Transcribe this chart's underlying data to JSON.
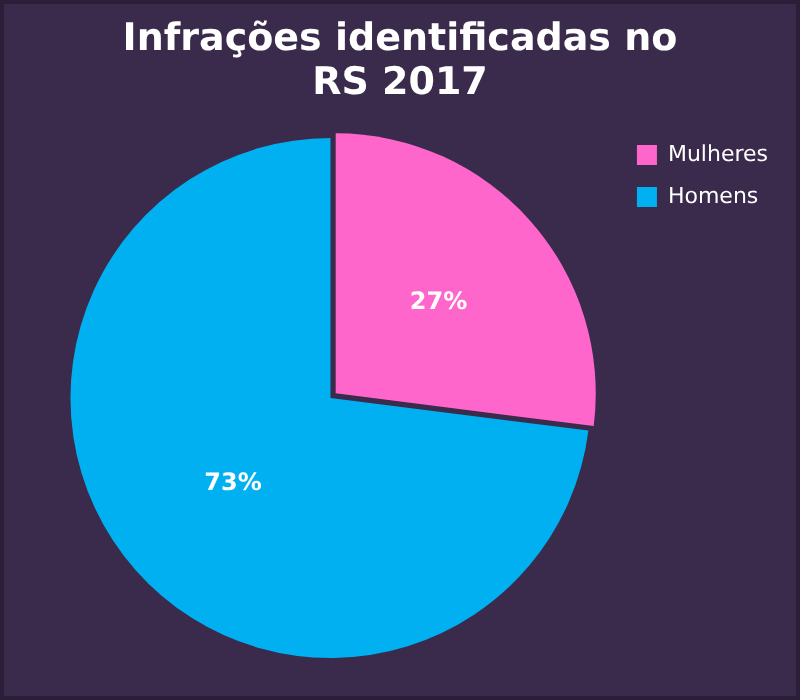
{
  "chart_data": {
    "type": "pie",
    "title": "Infrações identificadas no RS 2017",
    "categories": [
      "Mulheres",
      "Homens"
    ],
    "values": [
      27,
      73
    ],
    "colors": [
      "#ff66cc",
      "#00b0f0"
    ],
    "value_labels": [
      "27%",
      "73%"
    ],
    "legend": "right"
  }
}
